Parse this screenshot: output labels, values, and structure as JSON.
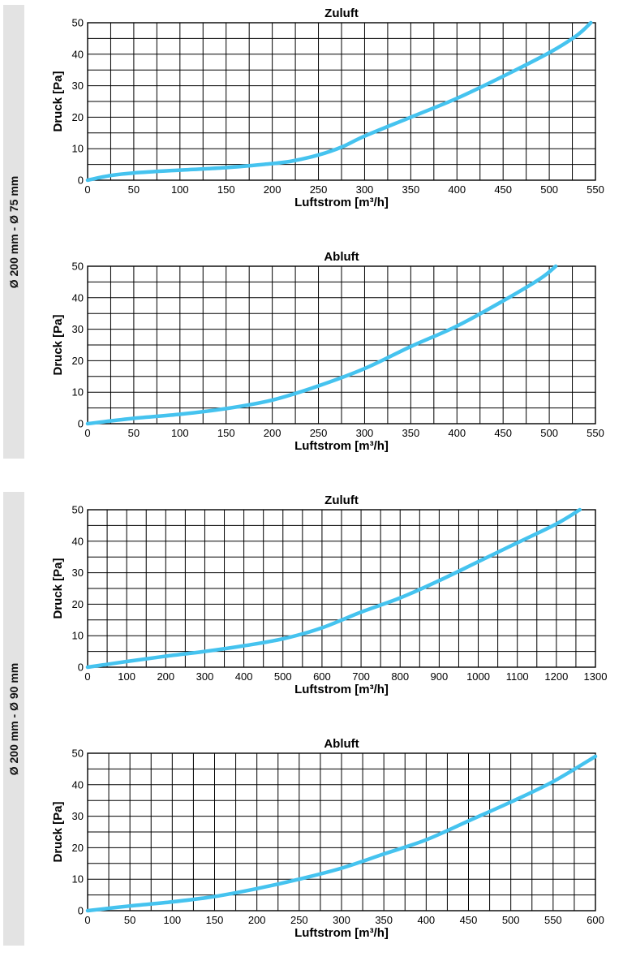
{
  "groups": [
    {
      "label": "Ø 200 mm - Ø 75 mm"
    },
    {
      "label": "Ø 200 mm - Ø 90 mm"
    }
  ],
  "colors": {
    "curve": "#45c3ef",
    "grid": "#000000",
    "band": "#e3e3e3"
  },
  "chart_data": [
    {
      "type": "line",
      "title": "Zuluft",
      "xlabel": "Luftstrom [m³/h]",
      "ylabel": "Druck [Pa]",
      "xlim": [
        0,
        550
      ],
      "ylim": [
        0,
        50
      ],
      "xtick_step": 50,
      "ytick_step": 10,
      "grid": true,
      "x": [
        0,
        25,
        50,
        100,
        150,
        190,
        220,
        250,
        275,
        300,
        350,
        400,
        450,
        500,
        530,
        545
      ],
      "series": [
        {
          "values": [
            0,
            1.5,
            2.3,
            3.2,
            4,
            5,
            6,
            8,
            10.5,
            14,
            20,
            26,
            33,
            40.5,
            46,
            50
          ]
        }
      ]
    },
    {
      "type": "line",
      "title": "Abluft",
      "xlabel": "Luftstrom [m³/h]",
      "ylabel": "Druck [Pa]",
      "xlim": [
        0,
        550
      ],
      "ylim": [
        0,
        50
      ],
      "xtick_step": 50,
      "ytick_step": 10,
      "grid": true,
      "x": [
        0,
        50,
        100,
        150,
        200,
        250,
        300,
        350,
        400,
        450,
        490,
        507
      ],
      "series": [
        {
          "values": [
            0,
            1.7,
            3,
            4.8,
            7.5,
            12,
            17.5,
            24.5,
            31,
            39,
            46,
            50
          ]
        }
      ]
    },
    {
      "type": "line",
      "title": "Zuluft",
      "xlabel": "Luftstrom [m³/h]",
      "ylabel": "Druck [Pa]",
      "xlim": [
        0,
        1300
      ],
      "ylim": [
        0,
        50
      ],
      "xtick_step": 100,
      "ytick_step": 10,
      "grid": true,
      "x": [
        0,
        100,
        200,
        300,
        400,
        500,
        600,
        700,
        800,
        900,
        1000,
        1100,
        1200,
        1260
      ],
      "series": [
        {
          "values": [
            0,
            1.8,
            3.5,
            5,
            6.8,
            9,
            12.5,
            17.5,
            22,
            27.5,
            33.5,
            39.5,
            45.5,
            50
          ]
        }
      ]
    },
    {
      "type": "line",
      "title": "Abluft",
      "xlabel": "Luftstrom [m³/h]",
      "ylabel": "Druck [Pa]",
      "xlim": [
        0,
        600
      ],
      "ylim": [
        0,
        50
      ],
      "xtick_step": 50,
      "ytick_step": 10,
      "grid": true,
      "x": [
        0,
        50,
        100,
        150,
        200,
        250,
        300,
        350,
        400,
        450,
        500,
        550,
        600
      ],
      "series": [
        {
          "values": [
            0,
            1.5,
            2.8,
            4.5,
            7,
            10,
            13.5,
            18,
            22.5,
            28.5,
            34.5,
            41,
            49
          ]
        }
      ]
    }
  ]
}
